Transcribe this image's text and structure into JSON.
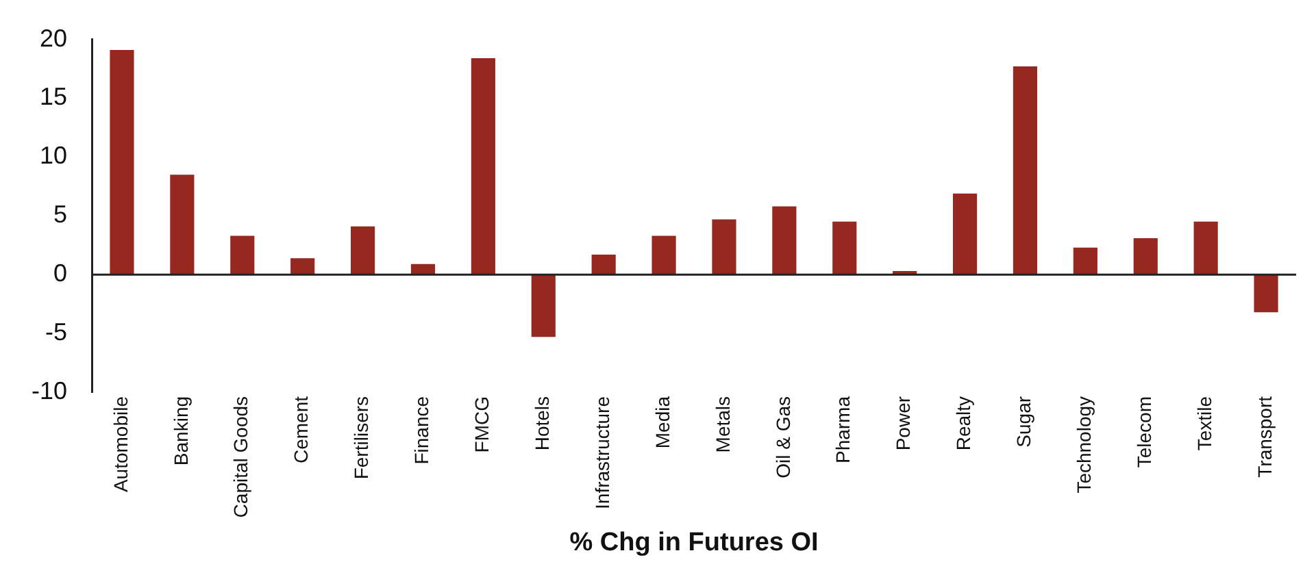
{
  "chart_data": {
    "type": "bar",
    "xlabel": "% Chg in Futures OI",
    "categories": [
      "Automobile",
      "Banking",
      "Capital Goods",
      "Cement",
      "Fertilisers",
      "Finance",
      "FMCG",
      "Hotels",
      "Infrastructure",
      "Media",
      "Metals",
      "Oil & Gas",
      "Pharma",
      "Power",
      "Realty",
      "Sugar",
      "Technology",
      "Telecom",
      "Textile",
      "Transport"
    ],
    "values": [
      19.1,
      8.5,
      3.3,
      1.4,
      4.1,
      0.9,
      18.4,
      -5.3,
      1.7,
      3.3,
      4.7,
      5.8,
      4.5,
      0.3,
      6.9,
      17.7,
      2.3,
      3.1,
      4.5,
      -3.2
    ],
    "color": "#972820",
    "ylim": [
      -10,
      20
    ],
    "yticks": [
      -10,
      -5,
      0,
      5,
      10,
      15,
      20
    ],
    "legend": false
  }
}
